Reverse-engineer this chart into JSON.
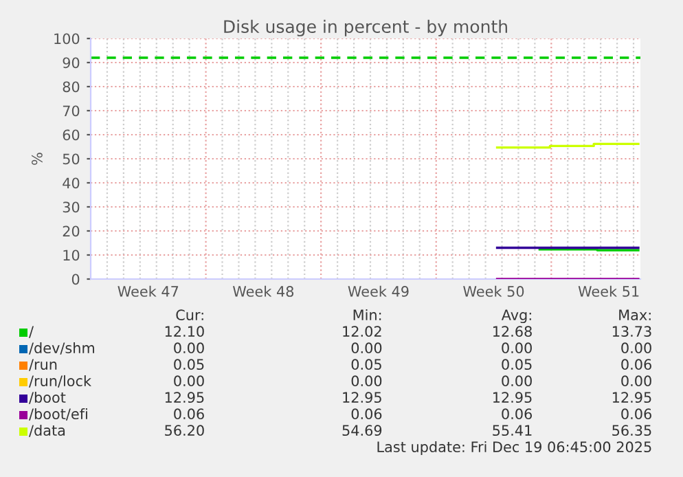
{
  "chart_data": {
    "type": "step",
    "title": "Disk usage in percent - by month",
    "ylabel": "%",
    "xlim": [
      "2025-11-17",
      "2025-12-20T10:00"
    ],
    "xticks": [
      {
        "value": "2025-11-20T12:00",
        "label": "Week 47"
      },
      {
        "value": "2025-11-27T12:00",
        "label": "Week 48"
      },
      {
        "value": "2025-12-04T12:00",
        "label": "Week 49"
      },
      {
        "value": "2025-12-11T12:00",
        "label": "Week 50"
      },
      {
        "value": "2025-12-18T12:00",
        "label": "Week 51"
      }
    ],
    "ylim": [
      0,
      100
    ],
    "yticks": [
      0,
      10,
      20,
      30,
      40,
      50,
      60,
      70,
      80,
      90,
      100
    ],
    "grid": true,
    "legend": "bottom",
    "line_style": "solid",
    "marker": "none",
    "series": [
      {
        "name": "/",
        "color": "#00cc00",
        "x": [
          "2025-12-14T07:00",
          "2025-12-17T19:00",
          "2025-12-20T07:00"
        ],
        "values": [
          12.3,
          12.0,
          12.0
        ]
      },
      {
        "name": "/dev/shm",
        "color": "#0066b3"
      },
      {
        "name": "/run",
        "color": "#ff8000"
      },
      {
        "name": "/run/lock",
        "color": "#ffcc00"
      },
      {
        "name": "/boot",
        "color": "#330099",
        "x": [
          "2025-12-11T17:00",
          "2025-12-20T07:00"
        ],
        "values": [
          13.0,
          13.0
        ]
      },
      {
        "name": "/boot/efi",
        "color": "#990099",
        "x": [
          "2025-12-11T17:00",
          "2025-12-20T07:00"
        ],
        "values": [
          0,
          0
        ]
      },
      {
        "name": "/data",
        "color": "#ccff00",
        "x": [
          "2025-12-11T17:00",
          "2025-12-14T22:00",
          "2025-12-17T14:00",
          "2025-12-20T07:00"
        ],
        "values": [
          54.7,
          55.3,
          56.2,
          56.2
        ]
      }
    ],
    "ref_lines": [
      {
        "axis": "y",
        "value": 92,
        "color": "#00cc00",
        "line_style": "dashed"
      }
    ],
    "annotations": [
      "Cur:",
      "Min:",
      "Avg:",
      "Max:",
      "12.10",
      "12.02",
      "12.68",
      "13.73",
      "0.00",
      "0.00",
      "0.00",
      "0.00",
      "0.05",
      "0.05",
      "0.05",
      "0.06",
      "0.00",
      "0.00",
      "0.00",
      "0.00",
      "12.95",
      "12.95",
      "12.95",
      "12.95",
      "0.06",
      "0.06",
      "0.06",
      "0.06",
      "56.20",
      "54.69",
      "55.41",
      "56.35",
      "Last update: Fri Dec 19 06:45:00 2025"
    ]
  }
}
